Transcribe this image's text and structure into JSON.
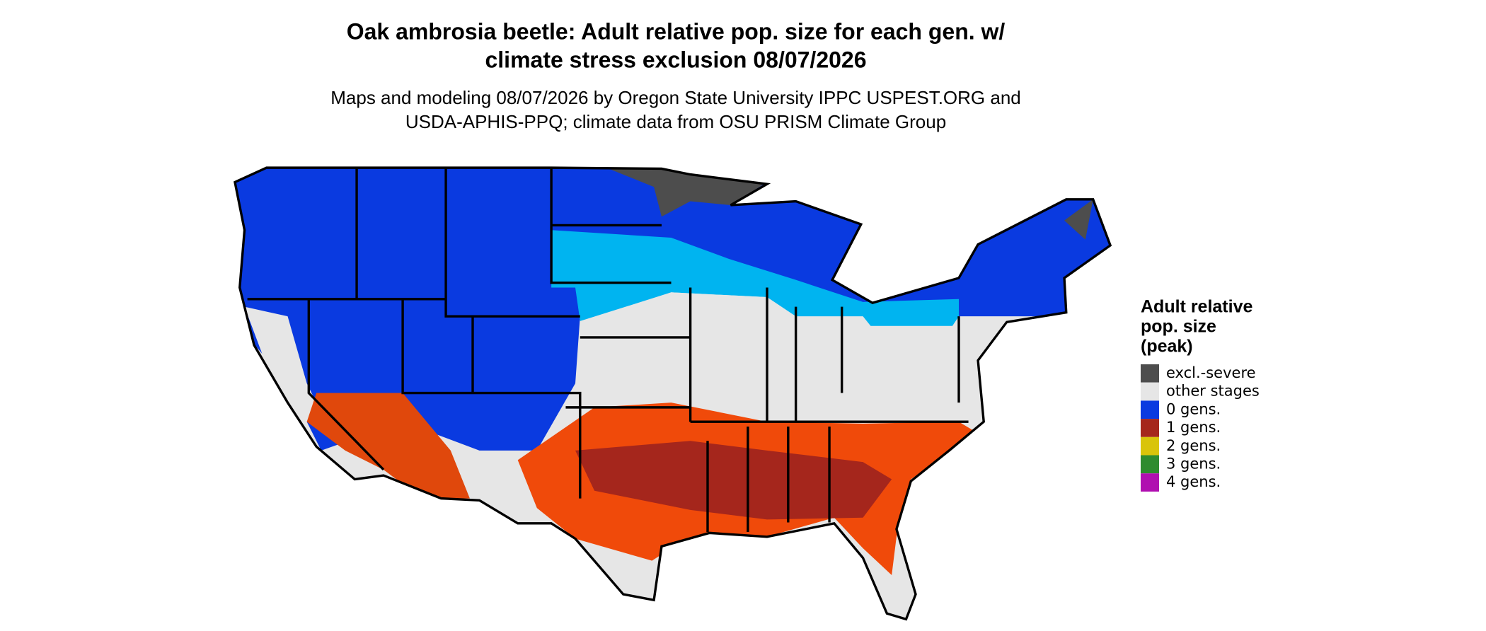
{
  "header": {
    "title_lines": [
      "Oak ambrosia beetle: Adult relative pop. size for each gen. w/",
      "climate stress exclusion 08/07/2026"
    ],
    "subtitle_lines": [
      "Maps and modeling 08/07/2026 by Oregon State University IPPC USPEST.ORG and",
      "USDA-APHIS-PPQ; climate data from OSU PRISM Climate Group"
    ]
  },
  "legend": {
    "title_lines": [
      "Adult relative",
      "pop. size",
      "(peak)"
    ],
    "items": [
      {
        "label": "excl.-severe",
        "color": "#4d4d4d"
      },
      {
        "label": "other stages",
        "color": "#e6e6e6"
      },
      {
        "label": "0 gens.",
        "color": "#0a3ae0"
      },
      {
        "label": "1 gens.",
        "color": "#a5261c"
      },
      {
        "label": "2 gens.",
        "color": "#d9c40a"
      },
      {
        "label": "3 gens.",
        "color": "#2e8b2e"
      },
      {
        "label": "4 gens.",
        "color": "#b00fb0"
      }
    ]
  }
}
